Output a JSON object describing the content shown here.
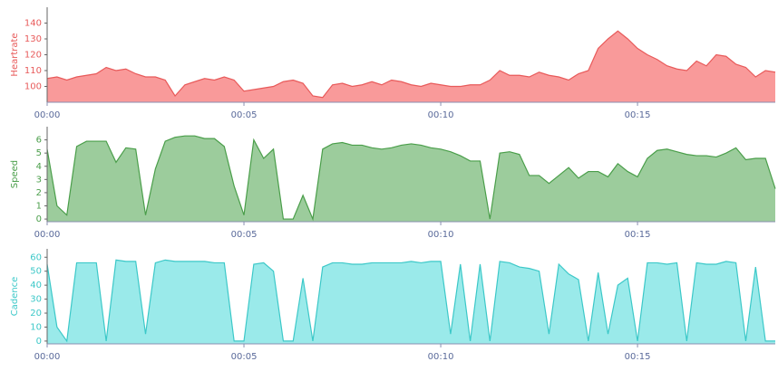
{
  "chart_data": [
    {
      "type": "area",
      "ylabel": "Heartrate",
      "color": "#e85a5a",
      "fill": "#f99a9a",
      "xlim": [
        0,
        18.5
      ],
      "ylim": [
        90,
        150
      ],
      "yticks": [
        100,
        110,
        120,
        130,
        140
      ],
      "xticks": [
        {
          "value": 0,
          "label": "00:00"
        },
        {
          "value": 5,
          "label": "00:05"
        },
        {
          "value": 10,
          "label": "00:10"
        },
        {
          "value": 15,
          "label": "00:15"
        }
      ],
      "x": [
        0,
        0.25,
        0.5,
        0.75,
        1,
        1.25,
        1.5,
        1.75,
        2,
        2.25,
        2.5,
        2.75,
        3,
        3.25,
        3.5,
        3.75,
        4,
        4.25,
        4.5,
        4.75,
        5,
        5.25,
        5.5,
        5.75,
        6,
        6.25,
        6.5,
        6.75,
        7,
        7.25,
        7.5,
        7.75,
        8,
        8.25,
        8.5,
        8.75,
        9,
        9.25,
        9.5,
        9.75,
        10,
        10.25,
        10.5,
        10.75,
        11,
        11.25,
        11.5,
        11.75,
        12,
        12.25,
        12.5,
        12.75,
        13,
        13.25,
        13.5,
        13.75,
        14,
        14.25,
        14.5,
        14.75,
        15,
        15.25,
        15.5,
        15.75,
        16,
        16.25,
        16.5,
        16.75,
        17,
        17.25,
        17.5,
        17.75,
        18,
        18.25,
        18.5
      ],
      "values": [
        105,
        106,
        104,
        106,
        107,
        108,
        112,
        110,
        111,
        108,
        106,
        106,
        104,
        94,
        101,
        103,
        105,
        104,
        106,
        104,
        97,
        98,
        99,
        100,
        103,
        104,
        102,
        94,
        93,
        101,
        102,
        100,
        101,
        103,
        101,
        104,
        103,
        101,
        100,
        102,
        101,
        100,
        100,
        101,
        101,
        104,
        110,
        107,
        107,
        106,
        109,
        107,
        106,
        104,
        108,
        110,
        124,
        130,
        135,
        130,
        124,
        120,
        117,
        113,
        111,
        110,
        116,
        113,
        120,
        119,
        114,
        112,
        106,
        110,
        109
      ]
    },
    {
      "type": "area",
      "ylabel": "Speed",
      "color": "#4a9e4a",
      "fill": "#9ccc9c",
      "xlim": [
        0,
        18.5
      ],
      "ylim": [
        -0.2,
        7
      ],
      "yticks": [
        0,
        1,
        2,
        3,
        4,
        5,
        6
      ],
      "xticks": [
        {
          "value": 0,
          "label": "00:00"
        },
        {
          "value": 5,
          "label": "00:05"
        },
        {
          "value": 10,
          "label": "00:10"
        },
        {
          "value": 15,
          "label": "00:15"
        }
      ],
      "x": [
        0,
        0.25,
        0.5,
        0.75,
        1,
        1.25,
        1.5,
        1.75,
        2,
        2.25,
        2.5,
        2.75,
        3,
        3.25,
        3.5,
        3.75,
        4,
        4.25,
        4.5,
        4.75,
        5,
        5.25,
        5.5,
        5.75,
        6,
        6.25,
        6.5,
        6.75,
        7,
        7.25,
        7.5,
        7.75,
        8,
        8.25,
        8.5,
        8.75,
        9,
        9.25,
        9.5,
        9.75,
        10,
        10.25,
        10.5,
        10.75,
        11,
        11.25,
        11.5,
        11.75,
        12,
        12.25,
        12.5,
        12.75,
        13,
        13.25,
        13.5,
        13.75,
        14,
        14.25,
        14.5,
        14.75,
        15,
        15.25,
        15.5,
        15.75,
        16,
        16.25,
        16.5,
        16.75,
        17,
        17.25,
        17.5,
        17.75,
        18,
        18.25,
        18.5
      ],
      "values": [
        5.3,
        1,
        0.3,
        5.5,
        5.9,
        5.9,
        5.9,
        4.3,
        5.4,
        5.3,
        0.3,
        3.8,
        5.9,
        6.2,
        6.3,
        6.3,
        6.1,
        6.1,
        5.5,
        2.5,
        0.3,
        6,
        4.6,
        5.3,
        0,
        0,
        1.8,
        0,
        5.3,
        5.7,
        5.8,
        5.6,
        5.6,
        5.4,
        5.3,
        5.4,
        5.6,
        5.7,
        5.6,
        5.4,
        5.3,
        5.1,
        4.8,
        4.4,
        4.4,
        0,
        5,
        5.1,
        4.9,
        3.3,
        3.3,
        2.7,
        3.3,
        3.9,
        3.1,
        3.6,
        3.6,
        3.2,
        4.2,
        3.6,
        3.2,
        4.6,
        5.2,
        5.3,
        5.1,
        4.9,
        4.8,
        4.8,
        4.7,
        5,
        5.4,
        4.5,
        4.6,
        4.6,
        2.3
      ]
    },
    {
      "type": "area",
      "ylabel": "Cadence",
      "color": "#3cc8c8",
      "fill": "#9aeaea",
      "xlim": [
        0,
        18.5
      ],
      "ylim": [
        -2,
        66
      ],
      "yticks": [
        0,
        10,
        20,
        30,
        40,
        50,
        60
      ],
      "xticks": [
        {
          "value": 0,
          "label": "00:00"
        },
        {
          "value": 5,
          "label": "00:05"
        },
        {
          "value": 10,
          "label": "00:10"
        },
        {
          "value": 15,
          "label": "00:15"
        }
      ],
      "x": [
        0,
        0.25,
        0.5,
        0.75,
        1,
        1.25,
        1.5,
        1.75,
        2,
        2.25,
        2.5,
        2.75,
        3,
        3.25,
        3.5,
        3.75,
        4,
        4.25,
        4.5,
        4.75,
        5,
        5.25,
        5.5,
        5.75,
        6,
        6.25,
        6.5,
        6.75,
        7,
        7.25,
        7.5,
        7.75,
        8,
        8.25,
        8.5,
        8.75,
        9,
        9.25,
        9.5,
        9.75,
        10,
        10.25,
        10.5,
        10.75,
        11,
        11.25,
        11.5,
        11.75,
        12,
        12.25,
        12.5,
        12.75,
        13,
        13.25,
        13.5,
        13.75,
        14,
        14.25,
        14.5,
        14.75,
        15,
        15.25,
        15.5,
        15.75,
        16,
        16.25,
        16.5,
        16.75,
        17,
        17.25,
        17.5,
        17.75,
        18,
        18.25,
        18.5
      ],
      "values": [
        55,
        10,
        0,
        56,
        56,
        56,
        0,
        58,
        57,
        57,
        5,
        56,
        58,
        57,
        57,
        57,
        57,
        56,
        56,
        0,
        0,
        55,
        56,
        50,
        0,
        0,
        45,
        0,
        53,
        56,
        56,
        55,
        55,
        56,
        56,
        56,
        56,
        57,
        56,
        57,
        57,
        5,
        55,
        0,
        55,
        0,
        57,
        56,
        53,
        52,
        50,
        5,
        55,
        48,
        44,
        0,
        49,
        5,
        40,
        45,
        0,
        56,
        56,
        55,
        56,
        0,
        56,
        55,
        55,
        57,
        56,
        0,
        53,
        0,
        0
      ]
    }
  ]
}
